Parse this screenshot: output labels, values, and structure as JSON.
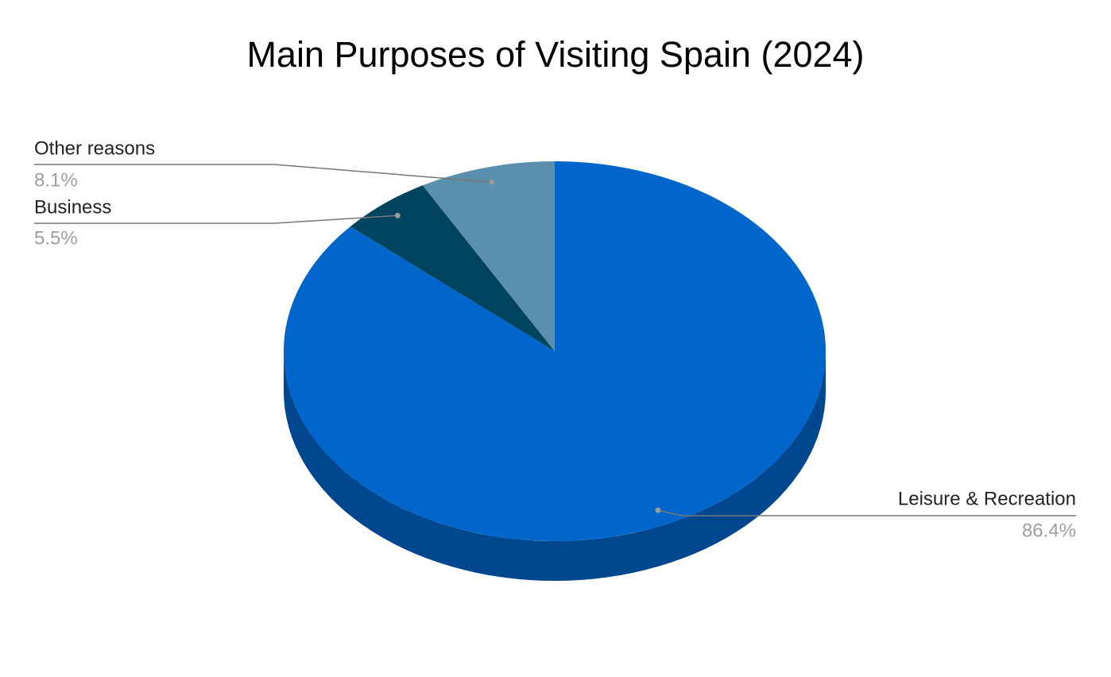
{
  "chart_data": {
    "type": "pie3d",
    "title": "Main Purposes of Visiting Spain (2024)",
    "categories": [
      "Leisure & Recreation",
      "Business",
      "Other reasons"
    ],
    "values": [
      86.4,
      5.5,
      8.1
    ],
    "value_labels": [
      "86.4%",
      "5.5%",
      "8.1%"
    ],
    "colors": [
      "#0066cc",
      "#00445f",
      "#5a8fad"
    ]
  }
}
